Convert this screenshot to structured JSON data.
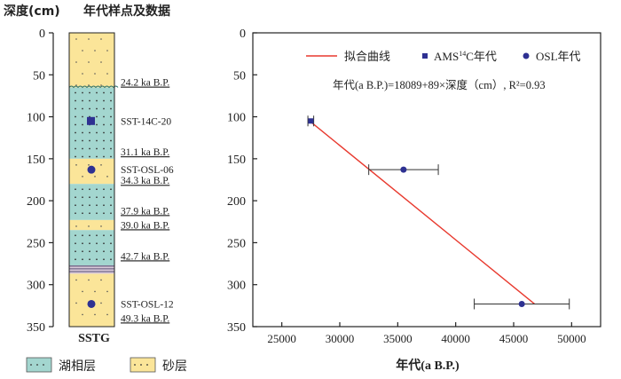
{
  "left_panel": {
    "ylabel": "深度(cm)",
    "header": "年代样点及数据",
    "depth_ticks": [
      0,
      50,
      100,
      150,
      200,
      250,
      300,
      350
    ],
    "core_name": "SSTG",
    "layers": [
      {
        "top": 0,
        "bottom": 65,
        "type": "sand"
      },
      {
        "top": 65,
        "bottom": 150,
        "type": "lake"
      },
      {
        "top": 150,
        "bottom": 180,
        "type": "sand"
      },
      {
        "top": 180,
        "bottom": 223,
        "type": "lake"
      },
      {
        "top": 223,
        "bottom": 235,
        "type": "sand"
      },
      {
        "top": 235,
        "bottom": 277,
        "type": "lake"
      },
      {
        "top": 277,
        "bottom": 287,
        "type": "banded"
      },
      {
        "top": 287,
        "bottom": 350,
        "type": "sand"
      }
    ],
    "age_labels": [
      {
        "depth": 63,
        "text": "24.2 ka B.P."
      },
      {
        "depth": 146,
        "text": "31.1 ka B.P."
      },
      {
        "depth": 180,
        "text": "34.3 ka B.P."
      },
      {
        "depth": 216,
        "text": "37.9 ka B.P."
      },
      {
        "depth": 233,
        "text": "39.0 ka B.P."
      },
      {
        "depth": 270,
        "text": "42.7 ka B.P."
      },
      {
        "depth": 344,
        "text": "49.3 ka B.P."
      }
    ],
    "samples": [
      {
        "depth": 105,
        "marker": "square",
        "label": "SST-14C-20"
      },
      {
        "depth": 163,
        "marker": "circle",
        "label": "SST-OSL-06"
      },
      {
        "depth": 323,
        "marker": "circle",
        "label": "SST-OSL-12"
      }
    ],
    "legend": [
      {
        "type": "lake",
        "label": "湖相层"
      },
      {
        "type": "sand",
        "label": "砂层"
      }
    ]
  },
  "chart_data": {
    "type": "scatter",
    "xlabel": "年代(a B.P.)",
    "ylabel": "",
    "xlim": [
      22500,
      52500
    ],
    "ylim": [
      0,
      350
    ],
    "x_ticks": [
      25000,
      30000,
      35000,
      40000,
      45000,
      50000
    ],
    "y_ticks": [
      0,
      50,
      100,
      150,
      200,
      250,
      300,
      350
    ],
    "y_inverted": true,
    "legend": {
      "fit": "拟合曲线",
      "ams_prefix": "AMS",
      "ams_sup": "14",
      "ams_suffix": "C年代",
      "osl": "OSL年代"
    },
    "equation": "年代(a B.P.)=18089+89×深度（cm）, R²=0.93",
    "fit_line": {
      "x": [
        27400,
        46800
      ],
      "y": [
        105,
        323
      ]
    },
    "series": [
      {
        "name": "AMS14C年代",
        "marker": "square",
        "points": [
          {
            "x": 27500,
            "y": 105,
            "xerr": 250
          }
        ]
      },
      {
        "name": "OSL年代",
        "marker": "circle",
        "points": [
          {
            "x": 35500,
            "y": 163,
            "xerr": 3000
          },
          {
            "x": 45700,
            "y": 323,
            "xerr": 4100
          }
        ]
      }
    ]
  },
  "colors": {
    "sand": "#fbe599",
    "lake": "#a3d6cf",
    "marker": "#2e3192",
    "fit": "#e8392e",
    "axis": "#222222"
  }
}
